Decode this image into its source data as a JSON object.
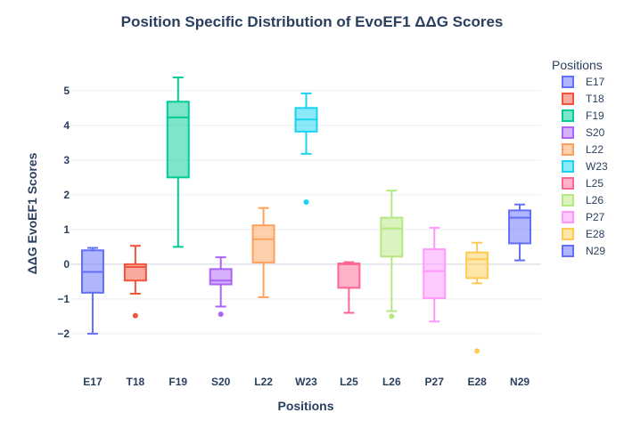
{
  "chart_data": {
    "type": "box",
    "title": "Position Specific Distribution of EvoEF1 ΔΔG Scores",
    "xlabel": "Positions",
    "ylabel": "ΔΔG EvoEF1 Scores",
    "ylim": [
      -2.9,
      6.2
    ],
    "yticks": [
      -2,
      -1,
      0,
      1,
      2,
      3,
      4,
      5
    ],
    "ytick_labels": [
      "−2",
      "−1",
      "0",
      "1",
      "2",
      "3",
      "4",
      "5"
    ],
    "legend_title": "Positions",
    "legend_position": "right",
    "grid": true,
    "categories": [
      "E17",
      "T18",
      "F19",
      "S20",
      "L22",
      "W23",
      "L25",
      "L26",
      "P27",
      "E28",
      "N29"
    ],
    "series": [
      {
        "name": "E17",
        "color": "#636efa",
        "min": -2.0,
        "q1": -0.82,
        "median": -0.22,
        "q3": 0.4,
        "max": 0.47,
        "outliers": []
      },
      {
        "name": "T18",
        "color": "#ef553b",
        "min": -0.85,
        "q1": -0.47,
        "median": -0.08,
        "q3": 0.0,
        "max": 0.53,
        "outliers": [
          -1.48
        ]
      },
      {
        "name": "F19",
        "color": "#00cc96",
        "min": 0.5,
        "q1": 2.5,
        "median": 4.23,
        "q3": 4.68,
        "max": 5.38,
        "outliers": []
      },
      {
        "name": "S20",
        "color": "#ab63fa",
        "min": -1.22,
        "q1": -0.58,
        "median": -0.47,
        "q3": -0.14,
        "max": 0.2,
        "outliers": [
          -1.44
        ]
      },
      {
        "name": "L22",
        "color": "#ffa15a",
        "min": -0.95,
        "q1": 0.05,
        "median": 0.72,
        "q3": 1.12,
        "max": 1.62,
        "outliers": []
      },
      {
        "name": "W23",
        "color": "#19d3f3",
        "min": 3.18,
        "q1": 3.82,
        "median": 4.17,
        "q3": 4.5,
        "max": 4.92,
        "outliers": [
          1.79
        ]
      },
      {
        "name": "L25",
        "color": "#ff6692",
        "min": -1.4,
        "q1": -0.68,
        "median": 0.0,
        "q3": 0.02,
        "max": 0.06,
        "outliers": []
      },
      {
        "name": "L26",
        "color": "#b6e880",
        "min": -1.35,
        "q1": 0.22,
        "median": 1.03,
        "q3": 1.34,
        "max": 2.12,
        "outliers": [
          -1.5
        ]
      },
      {
        "name": "P27",
        "color": "#ff97ff",
        "min": -1.65,
        "q1": -0.98,
        "median": -0.2,
        "q3": 0.43,
        "max": 1.05,
        "outliers": []
      },
      {
        "name": "E28",
        "color": "#fecb52",
        "min": -0.55,
        "q1": -0.4,
        "median": 0.14,
        "q3": 0.34,
        "max": 0.62,
        "outliers": [
          -2.5
        ]
      },
      {
        "name": "N29",
        "color": "#636efa",
        "min": 0.11,
        "q1": 0.6,
        "median": 1.34,
        "q3": 1.55,
        "max": 1.72,
        "outliers": []
      }
    ]
  }
}
